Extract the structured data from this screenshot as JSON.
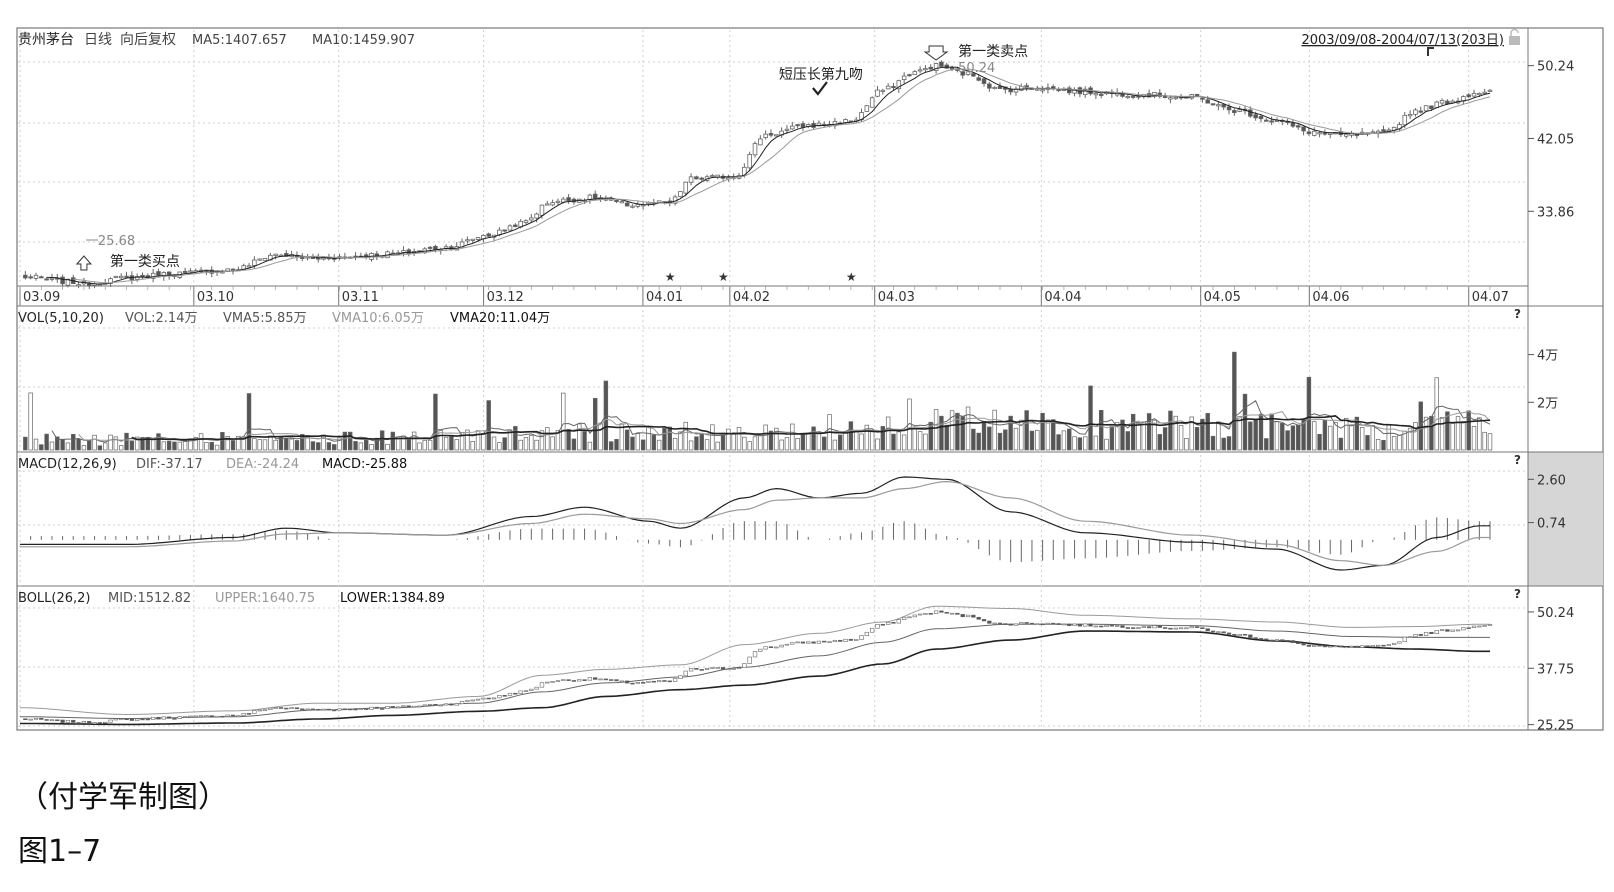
{
  "colors": {
    "frame": "#777777",
    "grid": "#cfcfcf",
    "text": "#333333",
    "muted": "#9a9a9a",
    "up": "#888888",
    "down": "#555555",
    "side_band": "#d6d6d6",
    "line_dark": "#222222",
    "line_mid": "#666666",
    "line_light": "#9a9a9a"
  },
  "chart_data": [
    {
      "panel": "price",
      "type": "candlestick",
      "header": {
        "stock": "贵州茅台",
        "period": "日线",
        "adjust": "向后复权",
        "ma5_label": "MA5:1407.657",
        "ma10_label": "MA10:1459.907",
        "range": "2003/09/08-2004/07/13(203日)"
      },
      "ylim": [
        25.68,
        52
      ],
      "y_ticks": [
        "50.24",
        "42.05",
        "33.86"
      ],
      "x_labels": [
        "03.09",
        "03.10",
        "03.11",
        "03.12",
        "04.01",
        "04.02",
        "04.03",
        "04.04",
        "04.05",
        "04.06",
        "04.07"
      ],
      "x_label_days": [
        0,
        24,
        44,
        64,
        86,
        98,
        118,
        141,
        163,
        178,
        200
      ],
      "n_days": 203,
      "close_anchors": [
        [
          0,
          26.5
        ],
        [
          10,
          25.9
        ],
        [
          12,
          25.68
        ],
        [
          20,
          26.4
        ],
        [
          30,
          26.9
        ],
        [
          40,
          27.3
        ],
        [
          48,
          29.0
        ],
        [
          54,
          28.6
        ],
        [
          60,
          28.7
        ],
        [
          70,
          29.1
        ],
        [
          80,
          29.8
        ],
        [
          88,
          31.2
        ],
        [
          94,
          32.5
        ],
        [
          100,
          35.0
        ],
        [
          108,
          35.4
        ],
        [
          114,
          34.6
        ],
        [
          122,
          34.8
        ],
        [
          126,
          37.5
        ],
        [
          134,
          37.8
        ],
        [
          140,
          42.5
        ],
        [
          148,
          43.5
        ],
        [
          156,
          44.0
        ],
        [
          162,
          47.5
        ],
        [
          168,
          49.5
        ],
        [
          172,
          50.24
        ],
        [
          178,
          49.3
        ],
        [
          184,
          47.5
        ],
        [
          190,
          47.8
        ],
        [
          200,
          47.3
        ],
        [
          210,
          47.0
        ],
        [
          220,
          46.7
        ],
        [
          228,
          45.2
        ],
        [
          236,
          44.0
        ],
        [
          242,
          42.8
        ],
        [
          248,
          42.4
        ],
        [
          256,
          42.6
        ],
        [
          262,
          45.2
        ],
        [
          268,
          46.2
        ],
        [
          274,
          47.3
        ]
      ],
      "stars_days": [
        122,
        132,
        156
      ],
      "annotations": [
        {
          "text": "第一类买点",
          "arrow": "up",
          "day": 12
        },
        {
          "text": "25.68",
          "day": 12
        },
        {
          "text": "第一类卖点",
          "arrow": "down",
          "day": 172
        },
        {
          "text": "50.24",
          "day": 172
        },
        {
          "text": "短压长第九吻",
          "mark": "check",
          "day": 150
        }
      ]
    },
    {
      "panel": "volume",
      "type": "bar",
      "header": {
        "title": "VOL(5,10,20)",
        "vol": "VOL:2.14万",
        "vma5": "VMA5:5.85万",
        "vma10": "VMA10:6.05万",
        "vma20": "VMA20:11.04万"
      },
      "ylim": [
        0,
        5.2
      ],
      "y_ticks": [
        "4万",
        "2万"
      ],
      "y_tick_values": [
        4,
        2
      ],
      "unit": "万"
    },
    {
      "panel": "macd",
      "type": "line",
      "header": {
        "title": "MACD(12,26,9)",
        "dif": "DIF:-37.17",
        "dea": "DEA:-24.24",
        "macd": "MACD:-25.88"
      },
      "ylim": [
        -1.9,
        3.0
      ],
      "y_ticks": [
        "2.60",
        "0.74"
      ],
      "y_tick_values": [
        2.6,
        0.74
      ],
      "dif_anchors": [
        [
          0,
          -0.2
        ],
        [
          20,
          -0.2
        ],
        [
          40,
          0.1
        ],
        [
          50,
          0.5
        ],
        [
          60,
          0.3
        ],
        [
          80,
          0.2
        ],
        [
          96,
          1.0
        ],
        [
          106,
          1.4
        ],
        [
          118,
          0.8
        ],
        [
          124,
          0.5
        ],
        [
          136,
          1.8
        ],
        [
          142,
          2.2
        ],
        [
          150,
          1.8
        ],
        [
          158,
          2.0
        ],
        [
          166,
          2.7
        ],
        [
          174,
          2.6
        ],
        [
          186,
          1.2
        ],
        [
          200,
          0.3
        ],
        [
          220,
          -0.1
        ],
        [
          236,
          -0.4
        ],
        [
          248,
          -1.3
        ],
        [
          256,
          -1.1
        ],
        [
          266,
          0.1
        ],
        [
          274,
          0.6
        ]
      ],
      "dea_anchors": [
        [
          0,
          -0.3
        ],
        [
          20,
          -0.3
        ],
        [
          40,
          -0.05
        ],
        [
          50,
          0.25
        ],
        [
          60,
          0.3
        ],
        [
          80,
          0.2
        ],
        [
          96,
          0.7
        ],
        [
          106,
          1.1
        ],
        [
          118,
          0.9
        ],
        [
          124,
          0.7
        ],
        [
          136,
          1.3
        ],
        [
          142,
          1.7
        ],
        [
          150,
          1.8
        ],
        [
          158,
          1.8
        ],
        [
          166,
          2.2
        ],
        [
          174,
          2.5
        ],
        [
          186,
          1.8
        ],
        [
          200,
          0.8
        ],
        [
          220,
          0.2
        ],
        [
          236,
          -0.2
        ],
        [
          248,
          -0.9
        ],
        [
          256,
          -1.1
        ],
        [
          266,
          -0.5
        ],
        [
          274,
          0.1
        ]
      ]
    },
    {
      "panel": "boll",
      "type": "line",
      "header": {
        "title": "BOLL(26,2)",
        "mid": "MID:1512.82",
        "upper": "UPPER:1640.75",
        "lower": "LOWER:1384.89"
      },
      "ylim": [
        24.5,
        52
      ],
      "y_ticks": [
        "50.24",
        "37.75",
        "25.25"
      ],
      "y_tick_values": [
        50.24,
        37.75,
        25.25
      ],
      "upper_anchors": [
        [
          0,
          29.0
        ],
        [
          20,
          27.5
        ],
        [
          40,
          28.3
        ],
        [
          56,
          30.0
        ],
        [
          70,
          30.0
        ],
        [
          86,
          31.5
        ],
        [
          98,
          36.2
        ],
        [
          110,
          37.5
        ],
        [
          124,
          38.5
        ],
        [
          136,
          43.0
        ],
        [
          150,
          45.5
        ],
        [
          162,
          48.0
        ],
        [
          172,
          51.5
        ],
        [
          186,
          51.0
        ],
        [
          200,
          49.5
        ],
        [
          220,
          48.7
        ],
        [
          236,
          48.0
        ],
        [
          250,
          46.8
        ],
        [
          262,
          47.0
        ],
        [
          274,
          47.5
        ]
      ],
      "mid_anchors": [
        [
          0,
          27.0
        ],
        [
          20,
          26.6
        ],
        [
          40,
          27.0
        ],
        [
          56,
          28.5
        ],
        [
          70,
          29.0
        ],
        [
          86,
          30.0
        ],
        [
          98,
          32.5
        ],
        [
          110,
          34.5
        ],
        [
          124,
          35.8
        ],
        [
          136,
          38.0
        ],
        [
          150,
          40.5
        ],
        [
          162,
          43.5
        ],
        [
          172,
          46.5
        ],
        [
          186,
          47.5
        ],
        [
          200,
          47.5
        ],
        [
          220,
          47.2
        ],
        [
          236,
          46.0
        ],
        [
          250,
          44.8
        ],
        [
          262,
          44.6
        ],
        [
          274,
          44.6
        ]
      ],
      "lower_anchors": [
        [
          0,
          25.5
        ],
        [
          20,
          25.3
        ],
        [
          40,
          25.6
        ],
        [
          56,
          26.5
        ],
        [
          70,
          27.3
        ],
        [
          86,
          28.2
        ],
        [
          98,
          29.0
        ],
        [
          110,
          31.5
        ],
        [
          124,
          33.0
        ],
        [
          136,
          34.0
        ],
        [
          150,
          36.0
        ],
        [
          162,
          38.7
        ],
        [
          172,
          42.0
        ],
        [
          186,
          44.0
        ],
        [
          200,
          46.0
        ],
        [
          220,
          45.8
        ],
        [
          236,
          43.8
        ],
        [
          250,
          42.5
        ],
        [
          262,
          42.0
        ],
        [
          274,
          41.5
        ]
      ]
    }
  ],
  "help_marks": [
    "?",
    "?",
    "?"
  ],
  "captions": {
    "author": "（付学军制图）",
    "figure": "图1–7"
  }
}
